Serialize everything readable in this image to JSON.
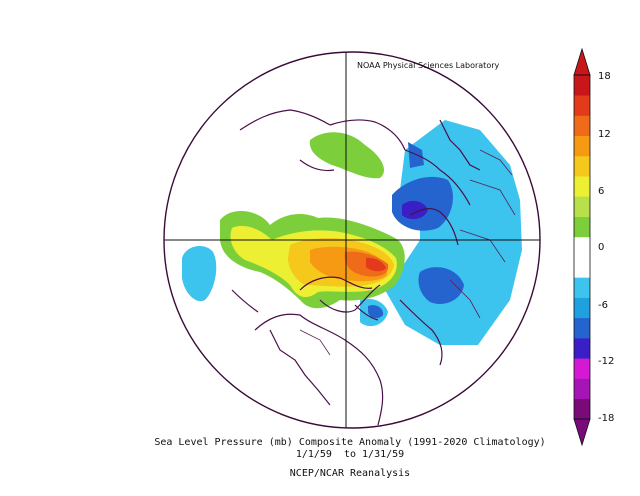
{
  "credit": "NOAA Physical Sciences Laboratory",
  "caption": {
    "line1": "Sea Level Pressure (mb) Composite Anomaly (1991-2020 Climatology)",
    "line2": "1/1/59  to 1/31/59",
    "line3": "NCEP/NCAR Reanalysis"
  },
  "colorbar": {
    "labels": [
      "18",
      "12",
      "6",
      "0",
      "-6",
      "-12",
      "-18"
    ],
    "colors": [
      "#7a0a7a",
      "#a515b5",
      "#d419d4",
      "#3a1fc6",
      "#2563cf",
      "#1fa1e0",
      "#3cc3ee",
      "#ffffff",
      "#ffffff",
      "#7ccf3a",
      "#b7e04b",
      "#ecef32",
      "#f6c81c",
      "#f59a12",
      "#ef6b1a",
      "#e23a1a",
      "#c8161a"
    ]
  },
  "projection": "north-polar-stereographic",
  "features": {
    "positive_anomaly_center": "Arctic / northern Canada (up to ~+15 mb)",
    "negative_anomaly_centers": [
      "Siberia / East Asia",
      "North Atlantic / Europe"
    ]
  }
}
